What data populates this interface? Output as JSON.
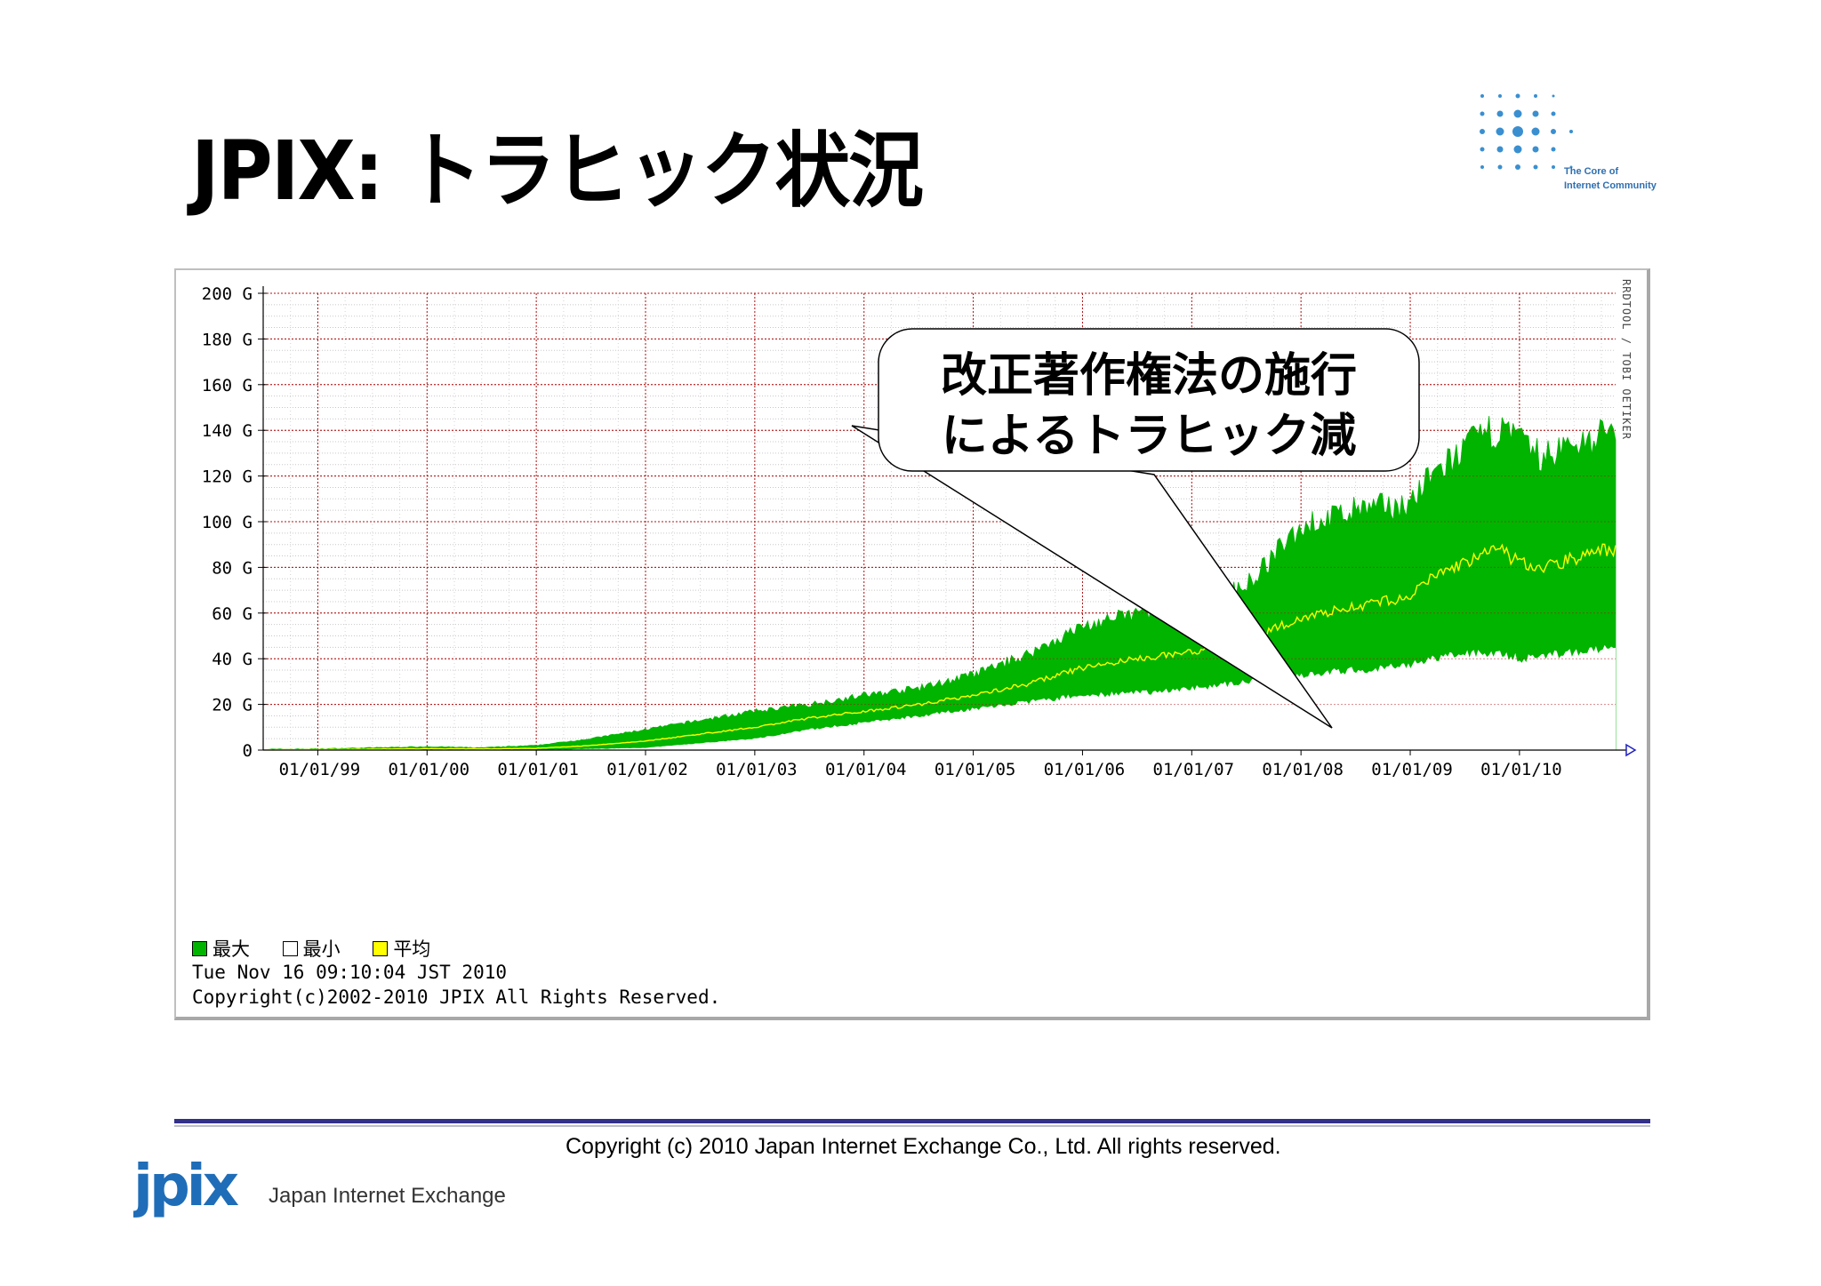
{
  "slide": {
    "title": "JPIX: トラヒック状況",
    "corner_logo": {
      "tagline_line1": "The Core of",
      "tagline_line2": "Internet Community"
    },
    "footer_copyright": "Copyright (c)  2010 Japan Internet Exchange Co., Ltd. All rights reserved.",
    "company_logo_text": "jpix",
    "company_name": "Japan Internet Exchange",
    "callout": {
      "line1": "改正著作権法の施行",
      "line2": "によるトラヒック減"
    }
  },
  "chart_data": {
    "type": "area",
    "ylim": [
      0,
      200
    ],
    "y_unit": "G",
    "y_ticks": [
      "200 G",
      "180 G",
      "160 G",
      "140 G",
      "120 G",
      "100 G",
      "80 G",
      "60 G",
      "40 G",
      "20 G",
      "0"
    ],
    "y_tick_values": [
      200,
      180,
      160,
      140,
      120,
      100,
      80,
      60,
      40,
      20,
      0
    ],
    "x_tick_labels": [
      "01/01/99",
      "01/01/00",
      "01/01/01",
      "01/01/02",
      "01/01/03",
      "01/01/04",
      "01/01/05",
      "01/01/06",
      "01/01/07",
      "01/01/08",
      "01/01/09",
      "01/01/10"
    ],
    "x_range_years": [
      1998.5,
      2010.88
    ],
    "series": [
      {
        "name": "最大",
        "color": "#00b400",
        "x": [
          1998.5,
          1999.0,
          1999.5,
          2000.0,
          2000.5,
          2001.0,
          2001.5,
          2002.0,
          2002.5,
          2003.0,
          2003.5,
          2004.0,
          2004.5,
          2005.0,
          2005.5,
          2006.0,
          2006.5,
          2007.0,
          2007.5,
          2008.0,
          2008.5,
          2009.0,
          2009.2,
          2009.5,
          2009.8,
          2010.0,
          2010.2,
          2010.5,
          2010.8
        ],
        "values": [
          0.3,
          0.5,
          1,
          1.5,
          1,
          2,
          5,
          9,
          13,
          17,
          20,
          24,
          27,
          33,
          42,
          54,
          60,
          64,
          72,
          98,
          105,
          108,
          120,
          132,
          141,
          135,
          128,
          134,
          139
        ]
      },
      {
        "name": "最小",
        "color": "#ffffff",
        "x": [
          1998.5,
          1999.0,
          1999.5,
          2000.0,
          2000.5,
          2001.0,
          2001.5,
          2002.0,
          2002.5,
          2003.0,
          2003.5,
          2004.0,
          2004.5,
          2005.0,
          2005.5,
          2006.0,
          2006.5,
          2007.0,
          2007.5,
          2008.0,
          2008.5,
          2009.0,
          2009.2,
          2009.5,
          2009.8,
          2010.0,
          2010.2,
          2010.5,
          2010.8
        ],
        "values": [
          0,
          0,
          0,
          0,
          0,
          0,
          0.5,
          1,
          3,
          5,
          9,
          12,
          15,
          18,
          21,
          24,
          25,
          27,
          30,
          33,
          35,
          37,
          40,
          42,
          43,
          40,
          41,
          43,
          44
        ]
      },
      {
        "name": "平均",
        "color": "#ffff00",
        "x": [
          1998.5,
          1999.0,
          1999.5,
          2000.0,
          2000.5,
          2001.0,
          2001.5,
          2002.0,
          2002.5,
          2003.0,
          2003.5,
          2004.0,
          2004.5,
          2005.0,
          2005.5,
          2006.0,
          2006.5,
          2007.0,
          2007.5,
          2008.0,
          2008.5,
          2009.0,
          2009.2,
          2009.5,
          2009.8,
          2010.0,
          2010.2,
          2010.5,
          2010.8
        ],
        "values": [
          0.1,
          0.2,
          0.4,
          0.6,
          0.5,
          0.8,
          2,
          4,
          7,
          10,
          14,
          17,
          20,
          24,
          29,
          36,
          40,
          43,
          48,
          58,
          63,
          67,
          76,
          82,
          88,
          82,
          80,
          84,
          88
        ]
      }
    ],
    "legend": [
      {
        "label": "最大",
        "color": "#00b400"
      },
      {
        "label": "最小",
        "color": "#ffffff"
      },
      {
        "label": "平均",
        "color": "#ffff00"
      }
    ],
    "legend_placement": "bottom-left",
    "grid": true,
    "timestamp": "Tue Nov 16 09:10:04 JST 2010",
    "copyright": "Copyright(c)2002-2010 JPIX All Rights Reserved.",
    "side_label": "RRDTOOL / TOBI OETIKER"
  }
}
